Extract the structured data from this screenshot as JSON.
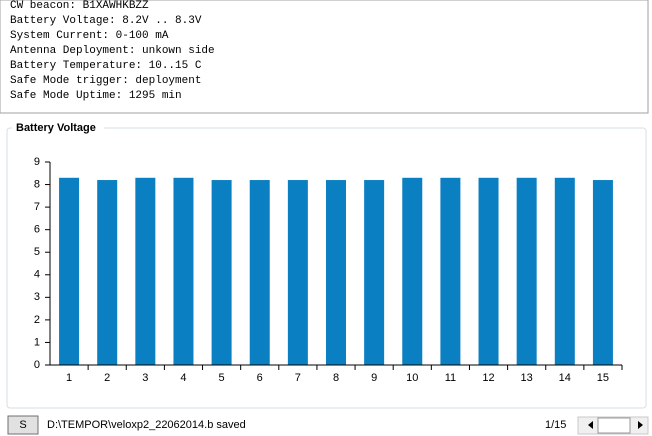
{
  "text_lines": [
    "CW beacon: B1XAWHKBZZ",
    "Battery Voltage: 8.2V .. 8.3V",
    "System Current: 0-100 mA",
    "Antenna Deployment: unkown side",
    "Battery Temperature: 10..15 C",
    "Safe Mode trigger: deployment",
    "Safe Mode Uptime: 1295 min"
  ],
  "chart_data": {
    "type": "bar",
    "title": "Battery Voltage",
    "categories": [
      "1",
      "2",
      "3",
      "4",
      "5",
      "6",
      "7",
      "8",
      "9",
      "10",
      "11",
      "12",
      "13",
      "14",
      "15"
    ],
    "values": [
      8.3,
      8.2,
      8.3,
      8.3,
      8.2,
      8.2,
      8.2,
      8.2,
      8.2,
      8.3,
      8.3,
      8.3,
      8.3,
      8.3,
      8.2
    ],
    "color": "#0a7fc2",
    "ylim": [
      0,
      9
    ],
    "yticks": [
      0,
      1,
      2,
      3,
      4,
      5,
      6,
      7,
      8,
      9
    ],
    "grid": false
  },
  "status": {
    "button": "S",
    "message": "D:\\TEMPOR\\veloxp2_22062014.b saved",
    "page": "1/15"
  }
}
